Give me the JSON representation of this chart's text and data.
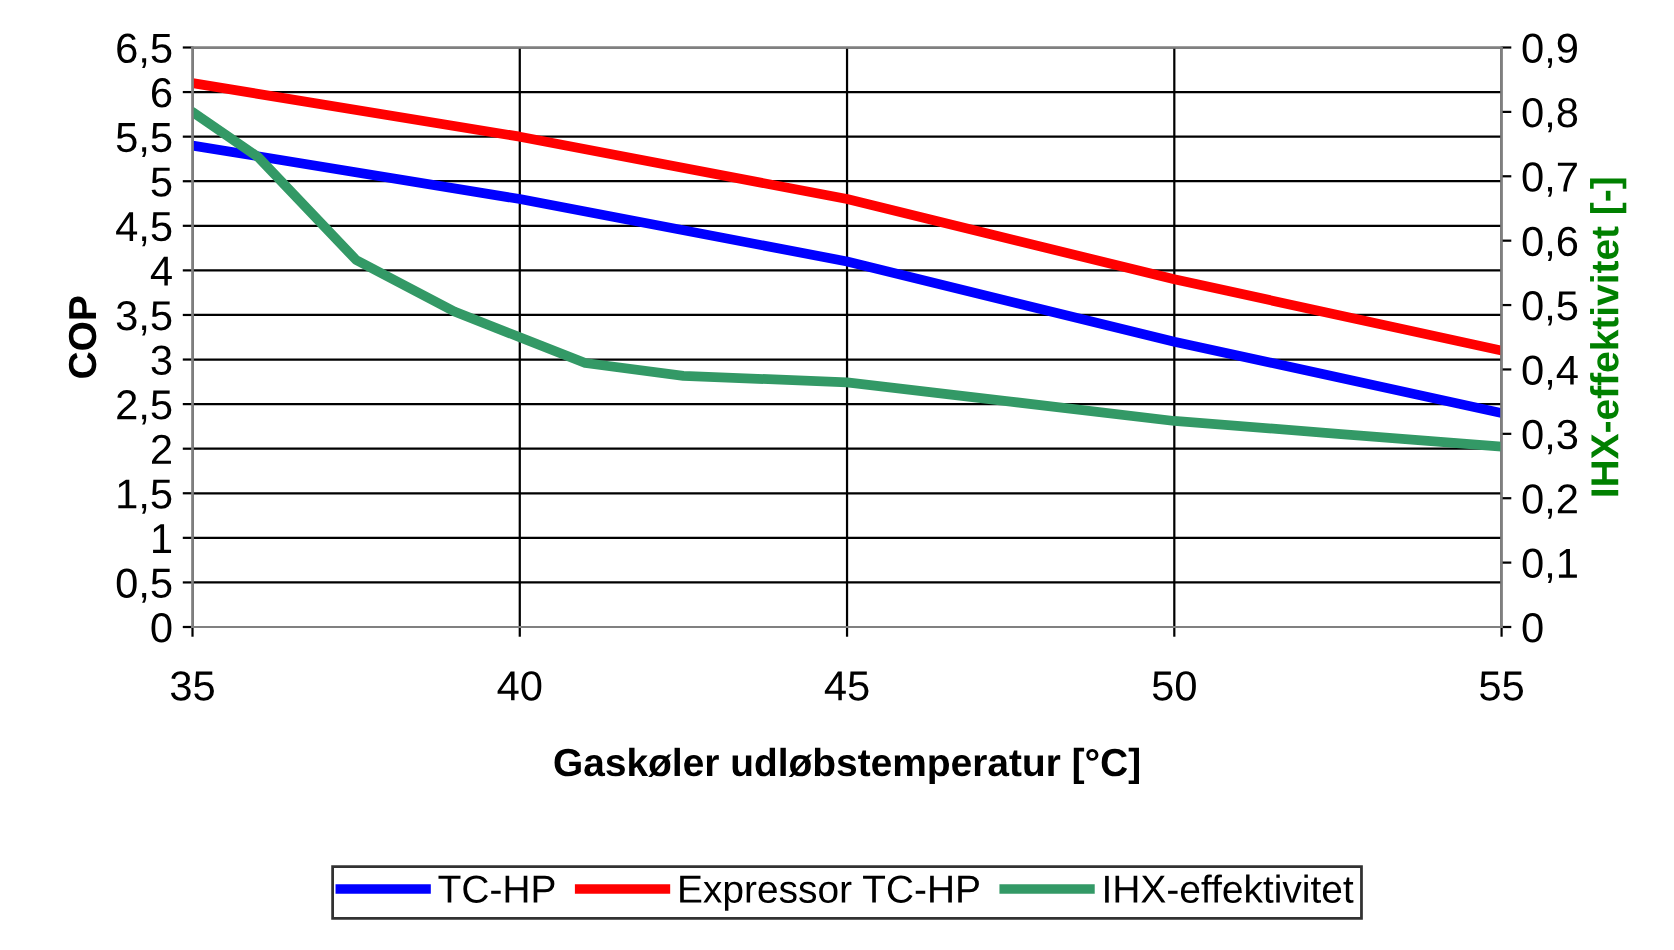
{
  "chart_data": {
    "type": "line",
    "xlabel": "Gaskøler udløbstemperatur [°C]",
    "ylabel": "COP",
    "y2label": "IHX-effektivitet [-]",
    "xlim": [
      35,
      55
    ],
    "xticks": [
      35,
      40,
      45,
      50,
      55
    ],
    "ylim": [
      0,
      6.5
    ],
    "yticks": [
      {
        "value": 0,
        "label": "0"
      },
      {
        "value": 0.5,
        "label": "0,5"
      },
      {
        "value": 1,
        "label": "1"
      },
      {
        "value": 1.5,
        "label": "1,5"
      },
      {
        "value": 2,
        "label": "2"
      },
      {
        "value": 2.5,
        "label": "2,5"
      },
      {
        "value": 3,
        "label": "3"
      },
      {
        "value": 3.5,
        "label": "3,5"
      },
      {
        "value": 4,
        "label": "4"
      },
      {
        "value": 4.5,
        "label": "4,5"
      },
      {
        "value": 5,
        "label": "5"
      },
      {
        "value": 5.5,
        "label": "5,5"
      },
      {
        "value": 6,
        "label": "6"
      },
      {
        "value": 6.5,
        "label": "6,5"
      }
    ],
    "y2lim": [
      0,
      0.9
    ],
    "y2ticks": [
      {
        "value": 0,
        "label": "0"
      },
      {
        "value": 0.1,
        "label": "0,1"
      },
      {
        "value": 0.2,
        "label": "0,2"
      },
      {
        "value": 0.3,
        "label": "0,3"
      },
      {
        "value": 0.4,
        "label": "0,4"
      },
      {
        "value": 0.5,
        "label": "0,5"
      },
      {
        "value": 0.6,
        "label": "0,6"
      },
      {
        "value": 0.7,
        "label": "0,7"
      },
      {
        "value": 0.8,
        "label": "0,8"
      },
      {
        "value": 0.9,
        "label": "0,9"
      }
    ],
    "grid": true,
    "legend": "bottom",
    "marker": "none",
    "line_style": "solid",
    "series": [
      {
        "name": "TC-HP",
        "color": "#0000ff",
        "x": [
          35,
          40,
          45,
          50,
          55
        ],
        "values": [
          5.4,
          4.8,
          4.1,
          3.2,
          2.4
        ]
      },
      {
        "name": "Expressor TC-HP",
        "color": "#ff0000",
        "x": [
          35,
          40,
          45,
          50,
          55
        ],
        "values": [
          6.1,
          5.5,
          4.8,
          3.9,
          3.1
        ]
      },
      {
        "name": "IHX-effektivitet",
        "color": "#339966",
        "axis": "y2",
        "x": [
          35,
          36,
          37.5,
          39,
          40,
          41,
          42.5,
          45,
          47.5,
          50,
          52.5,
          55
        ],
        "values": [
          0.8,
          0.73,
          0.57,
          0.49,
          0.45,
          0.41,
          0.39,
          0.38,
          0.35,
          0.32,
          0.3,
          0.28
        ]
      }
    ]
  }
}
